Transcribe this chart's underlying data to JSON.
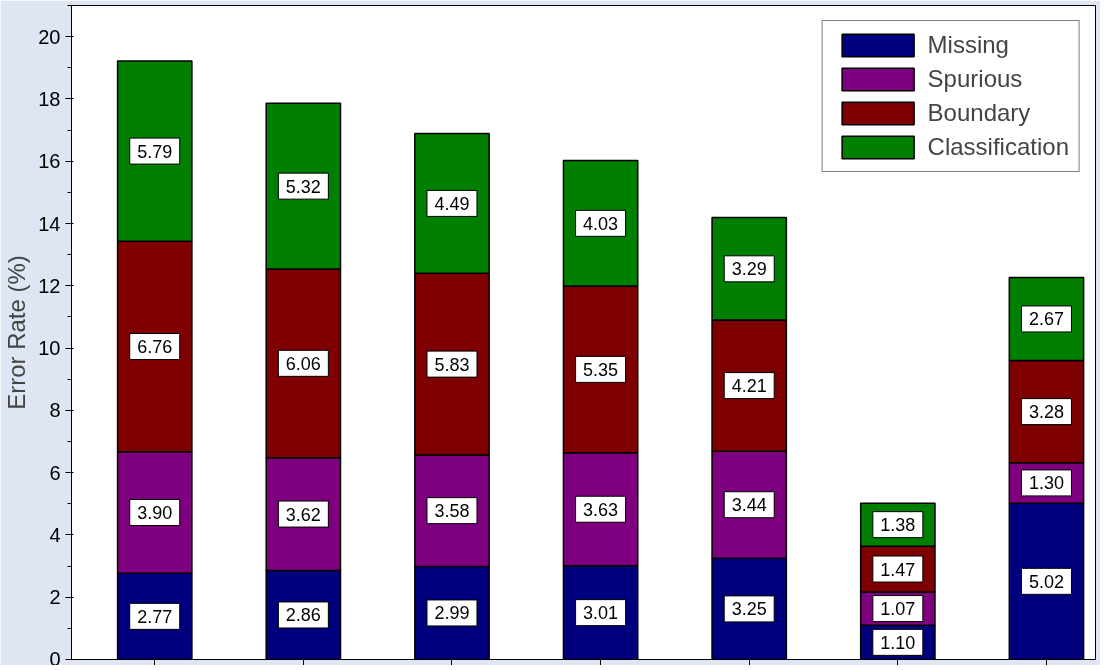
{
  "chart_data": {
    "type": "bar",
    "stacked": true,
    "ylabel": "Error Rate (%)",
    "categories": [
      null,
      null,
      null,
      null,
      null,
      null,
      null
    ],
    "series": [
      {
        "name": "Missing",
        "color": "#00007f",
        "values": [
          2.77,
          2.86,
          2.99,
          3.01,
          3.25,
          1.1,
          5.02
        ],
        "value_labels": [
          "2.77",
          "2.86",
          "2.99",
          "3.01",
          "3.25",
          "1.10",
          "5.02"
        ]
      },
      {
        "name": "Spurious",
        "color": "#7f007f",
        "values": [
          3.9,
          3.62,
          3.58,
          3.63,
          3.44,
          1.07,
          1.3
        ],
        "value_labels": [
          "3.90",
          "3.62",
          "3.58",
          "3.63",
          "3.44",
          "1.07",
          "1.30"
        ]
      },
      {
        "name": "Boundary",
        "color": "#7f0000",
        "values": [
          6.76,
          6.06,
          5.83,
          5.35,
          4.21,
          1.47,
          3.28
        ],
        "value_labels": [
          "6.76",
          "6.06",
          "5.83",
          "5.35",
          "4.21",
          "1.47",
          "3.28"
        ]
      },
      {
        "name": "Classification",
        "color": "#007f00",
        "values": [
          5.79,
          5.32,
          4.49,
          4.03,
          3.29,
          1.38,
          2.67
        ],
        "value_labels": [
          "5.79",
          "5.32",
          "4.49",
          "4.03",
          "3.29",
          "1.38",
          "2.67"
        ]
      }
    ],
    "ylim": [
      0,
      21
    ],
    "yticks": [
      0,
      2,
      4,
      6,
      8,
      10,
      12,
      14,
      16,
      18,
      20
    ],
    "grid": false,
    "legend": "top right",
    "tick_labels": "y"
  }
}
